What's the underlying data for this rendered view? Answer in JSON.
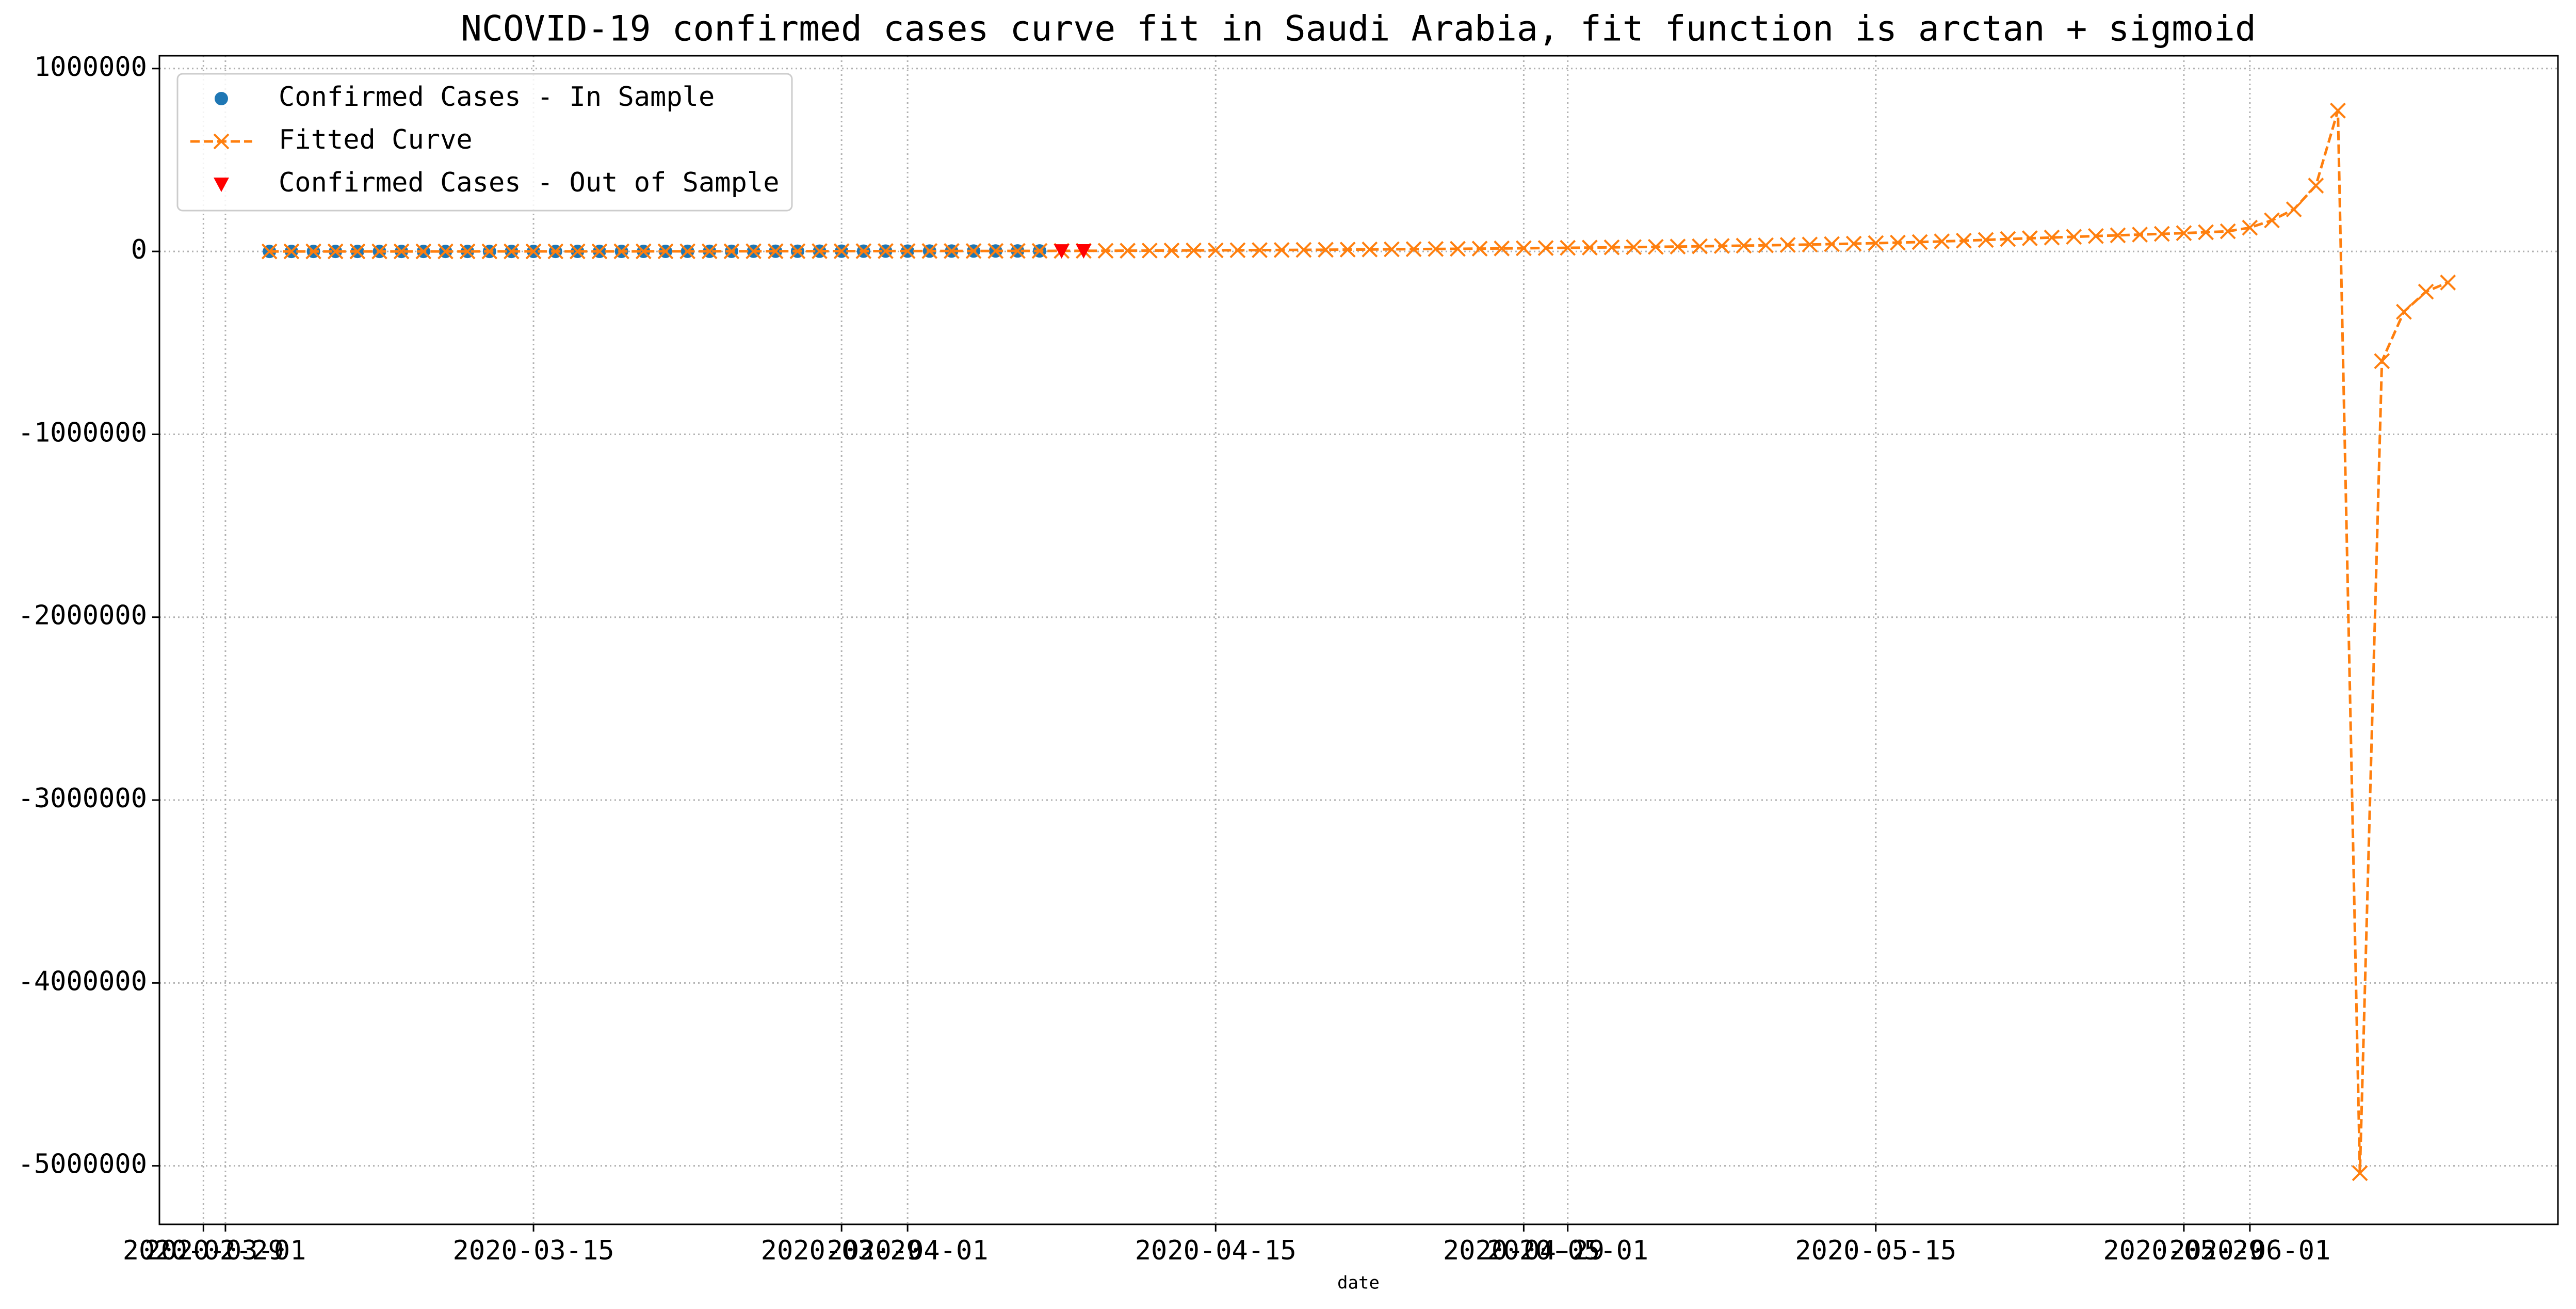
{
  "chart_data": {
    "type": "line",
    "title": "NCOVID-19 confirmed cases curve fit in Saudi Arabia, fit function is arctan + sigmoid",
    "xlabel": "date",
    "xlim": [
      "2020-02-27",
      "2020-06-15"
    ],
    "xticks": [
      "2020-02-29",
      "2020-03-01",
      "2020-03-15",
      "2020-03-29",
      "2020-04-01",
      "2020-04-15",
      "2020-04-29",
      "2020-05-01",
      "2020-05-15",
      "2020-05-29",
      "2020-06-01"
    ],
    "ylim": [
      -5320000,
      1070000
    ],
    "yticks": [
      -5000000,
      -4000000,
      -3000000,
      -2000000,
      -1000000,
      0,
      1000000
    ],
    "grid": true,
    "legend": "upper left",
    "series": [
      {
        "name": "Confirmed Cases - In Sample",
        "color": "#1f77b4",
        "marker": "circle",
        "x": [
          "2020-03-03",
          "2020-03-04",
          "2020-03-05",
          "2020-03-06",
          "2020-03-07",
          "2020-03-08",
          "2020-03-09",
          "2020-03-10",
          "2020-03-11",
          "2020-03-12",
          "2020-03-13",
          "2020-03-14",
          "2020-03-15",
          "2020-03-16",
          "2020-03-17",
          "2020-03-18",
          "2020-03-19",
          "2020-03-20",
          "2020-03-21",
          "2020-03-22",
          "2020-03-23",
          "2020-03-24",
          "2020-03-25",
          "2020-03-26",
          "2020-03-27",
          "2020-03-28",
          "2020-03-29",
          "2020-03-30",
          "2020-03-31",
          "2020-04-01",
          "2020-04-02",
          "2020-04-03",
          "2020-04-04",
          "2020-04-05",
          "2020-04-06",
          "2020-04-07"
        ],
        "values": [
          1,
          1,
          5,
          5,
          5,
          11,
          15,
          20,
          21,
          45,
          86,
          103,
          103,
          118,
          171,
          171,
          274,
          344,
          392,
          511,
          562,
          767,
          900,
          1012,
          1104,
          1203,
          1299,
          1453,
          1563,
          1720,
          1885,
          2039,
          2179,
          2402,
          2605,
          2795
        ]
      },
      {
        "name": "Fitted Curve",
        "color": "#ff7f0e",
        "marker": "x",
        "dash": true,
        "x": [
          "2020-03-03",
          "2020-03-04",
          "2020-03-05",
          "2020-03-06",
          "2020-03-07",
          "2020-03-08",
          "2020-03-09",
          "2020-03-10",
          "2020-03-11",
          "2020-03-12",
          "2020-03-13",
          "2020-03-14",
          "2020-03-15",
          "2020-03-16",
          "2020-03-17",
          "2020-03-18",
          "2020-03-19",
          "2020-03-20",
          "2020-03-21",
          "2020-03-22",
          "2020-03-23",
          "2020-03-24",
          "2020-03-25",
          "2020-03-26",
          "2020-03-27",
          "2020-03-28",
          "2020-03-29",
          "2020-03-30",
          "2020-03-31",
          "2020-04-01",
          "2020-04-02",
          "2020-04-03",
          "2020-04-04",
          "2020-04-05",
          "2020-04-06",
          "2020-04-07",
          "2020-04-08",
          "2020-04-09",
          "2020-04-10",
          "2020-04-11",
          "2020-04-12",
          "2020-04-13",
          "2020-04-14",
          "2020-04-15",
          "2020-04-16",
          "2020-04-17",
          "2020-04-18",
          "2020-04-19",
          "2020-04-20",
          "2020-04-21",
          "2020-04-22",
          "2020-04-23",
          "2020-04-24",
          "2020-04-25",
          "2020-04-26",
          "2020-04-27",
          "2020-04-28",
          "2020-04-29",
          "2020-04-30",
          "2020-05-01",
          "2020-05-02",
          "2020-05-03",
          "2020-05-04",
          "2020-05-05",
          "2020-05-06",
          "2020-05-07",
          "2020-05-08",
          "2020-05-09",
          "2020-05-10",
          "2020-05-11",
          "2020-05-12",
          "2020-05-13",
          "2020-05-14",
          "2020-05-15",
          "2020-05-16",
          "2020-05-17",
          "2020-05-18",
          "2020-05-19",
          "2020-05-20",
          "2020-05-21",
          "2020-05-22",
          "2020-05-23",
          "2020-05-24",
          "2020-05-25",
          "2020-05-26",
          "2020-05-27",
          "2020-05-28",
          "2020-05-29",
          "2020-05-30",
          "2020-05-31",
          "2020-06-01",
          "2020-06-02",
          "2020-06-03",
          "2020-06-04",
          "2020-06-05",
          "2020-06-06",
          "2020-06-07",
          "2020-06-08",
          "2020-06-09",
          "2020-06-10"
        ],
        "values": [
          5,
          10,
          15,
          20,
          30,
          40,
          55,
          70,
          90,
          110,
          140,
          170,
          210,
          250,
          300,
          360,
          430,
          510,
          600,
          700,
          810,
          930,
          1060,
          1190,
          1330,
          1470,
          1610,
          1750,
          1890,
          2030,
          2170,
          2310,
          2450,
          2590,
          2720,
          2860,
          3000,
          3300,
          3700,
          4100,
          4500,
          5000,
          5500,
          6000,
          6600,
          7200,
          7800,
          8500,
          9200,
          10000,
          10800,
          11600,
          12500,
          13400,
          14300,
          15300,
          16300,
          17400,
          18500,
          19700,
          20900,
          22200,
          23600,
          25000,
          26500,
          28100,
          29800,
          31600,
          33500,
          35500,
          37700,
          40000,
          42500,
          45200,
          48100,
          51300,
          54800,
          58700,
          63000,
          67800,
          72000,
          76000,
          80000,
          84000,
          88000,
          92000,
          96000,
          100000,
          105000,
          110000,
          130000,
          170000,
          230000,
          360000,
          770000,
          -5040000,
          -600000,
          -330000,
          -220000,
          -170000
        ]
      },
      {
        "name": "Confirmed Cases - Out of Sample",
        "color": "#ff0000",
        "marker": "triangle",
        "x": [
          "2020-04-08",
          "2020-04-09"
        ],
        "values": [
          2932,
          3287
        ]
      }
    ]
  }
}
